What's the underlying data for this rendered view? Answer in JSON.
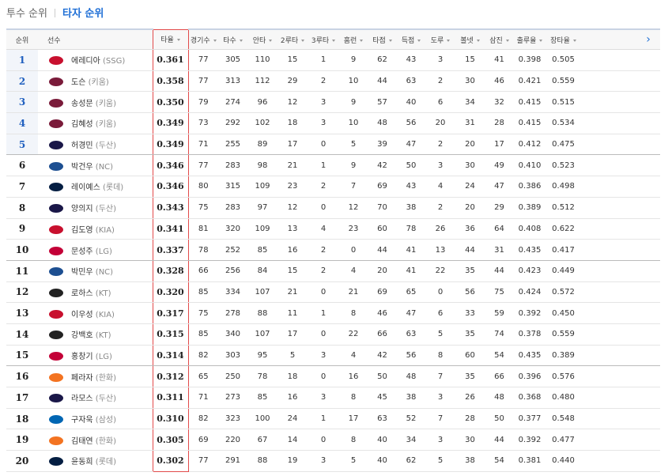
{
  "tabs": [
    "투수 순위",
    "타자 순위"
  ],
  "columns": [
    "순위",
    "선수",
    "타율",
    "경기수",
    "타수",
    "안타",
    "2루타",
    "3루타",
    "홈런",
    "타점",
    "득점",
    "도루",
    "볼넷",
    "삼진",
    "출루율",
    "장타율"
  ],
  "rows": [
    {
      "rank": "1",
      "name": "에레디아",
      "team": "(SSG)",
      "stats": [
        "0.361",
        "77",
        "305",
        "110",
        "15",
        "1",
        "9",
        "62",
        "43",
        "3",
        "15",
        "41",
        "0.398",
        "0.505"
      ]
    },
    {
      "rank": "2",
      "name": "도슨",
      "team": "(키움)",
      "stats": [
        "0.358",
        "77",
        "313",
        "112",
        "29",
        "2",
        "10",
        "44",
        "63",
        "2",
        "30",
        "46",
        "0.421",
        "0.559"
      ]
    },
    {
      "rank": "3",
      "name": "송성문",
      "team": "(키움)",
      "stats": [
        "0.350",
        "79",
        "274",
        "96",
        "12",
        "3",
        "9",
        "57",
        "40",
        "6",
        "34",
        "32",
        "0.415",
        "0.515"
      ]
    },
    {
      "rank": "4",
      "name": "김혜성",
      "team": "(키움)",
      "stats": [
        "0.349",
        "73",
        "292",
        "102",
        "18",
        "3",
        "10",
        "48",
        "56",
        "20",
        "31",
        "28",
        "0.415",
        "0.534"
      ]
    },
    {
      "rank": "5",
      "name": "허경민",
      "team": "(두산)",
      "stats": [
        "0.349",
        "71",
        "255",
        "89",
        "17",
        "0",
        "5",
        "39",
        "47",
        "2",
        "20",
        "17",
        "0.412",
        "0.475"
      ]
    },
    {
      "rank": "6",
      "name": "박건우",
      "team": "(NC)",
      "stats": [
        "0.346",
        "77",
        "283",
        "98",
        "21",
        "1",
        "9",
        "42",
        "50",
        "3",
        "30",
        "49",
        "0.410",
        "0.523"
      ]
    },
    {
      "rank": "7",
      "name": "레이예스",
      "team": "(롯데)",
      "stats": [
        "0.346",
        "80",
        "315",
        "109",
        "23",
        "2",
        "7",
        "69",
        "43",
        "4",
        "24",
        "47",
        "0.386",
        "0.498"
      ]
    },
    {
      "rank": "8",
      "name": "양의지",
      "team": "(두산)",
      "stats": [
        "0.343",
        "75",
        "283",
        "97",
        "12",
        "0",
        "12",
        "70",
        "38",
        "2",
        "20",
        "29",
        "0.389",
        "0.512"
      ]
    },
    {
      "rank": "9",
      "name": "김도영",
      "team": "(KIA)",
      "stats": [
        "0.341",
        "81",
        "320",
        "109",
        "13",
        "4",
        "23",
        "60",
        "78",
        "26",
        "36",
        "64",
        "0.408",
        "0.622"
      ]
    },
    {
      "rank": "10",
      "name": "문성주",
      "team": "(LG)",
      "stats": [
        "0.337",
        "78",
        "252",
        "85",
        "16",
        "2",
        "0",
        "44",
        "41",
        "13",
        "44",
        "31",
        "0.435",
        "0.417"
      ]
    },
    {
      "rank": "11",
      "name": "박민우",
      "team": "(NC)",
      "stats": [
        "0.328",
        "66",
        "256",
        "84",
        "15",
        "2",
        "4",
        "20",
        "41",
        "22",
        "35",
        "44",
        "0.423",
        "0.449"
      ]
    },
    {
      "rank": "12",
      "name": "로하스",
      "team": "(KT)",
      "stats": [
        "0.320",
        "85",
        "334",
        "107",
        "21",
        "0",
        "21",
        "69",
        "65",
        "0",
        "56",
        "75",
        "0.424",
        "0.572"
      ]
    },
    {
      "rank": "13",
      "name": "이우성",
      "team": "(KIA)",
      "stats": [
        "0.317",
        "75",
        "278",
        "88",
        "11",
        "1",
        "8",
        "46",
        "47",
        "6",
        "33",
        "59",
        "0.392",
        "0.450"
      ]
    },
    {
      "rank": "14",
      "name": "강백호",
      "team": "(KT)",
      "stats": [
        "0.315",
        "85",
        "340",
        "107",
        "17",
        "0",
        "22",
        "66",
        "63",
        "5",
        "35",
        "74",
        "0.378",
        "0.559"
      ]
    },
    {
      "rank": "15",
      "name": "홍창기",
      "team": "(LG)",
      "stats": [
        "0.314",
        "82",
        "303",
        "95",
        "5",
        "3",
        "4",
        "42",
        "56",
        "8",
        "60",
        "54",
        "0.435",
        "0.389"
      ]
    },
    {
      "rank": "16",
      "name": "페라자",
      "team": "(한화)",
      "stats": [
        "0.312",
        "65",
        "250",
        "78",
        "18",
        "0",
        "16",
        "50",
        "48",
        "7",
        "35",
        "66",
        "0.396",
        "0.576"
      ]
    },
    {
      "rank": "17",
      "name": "라모스",
      "team": "(두산)",
      "stats": [
        "0.311",
        "71",
        "273",
        "85",
        "16",
        "3",
        "8",
        "45",
        "38",
        "3",
        "26",
        "48",
        "0.368",
        "0.480"
      ]
    },
    {
      "rank": "18",
      "name": "구자욱",
      "team": "(삼성)",
      "stats": [
        "0.310",
        "82",
        "323",
        "100",
        "24",
        "1",
        "17",
        "63",
        "52",
        "7",
        "28",
        "50",
        "0.377",
        "0.548"
      ]
    },
    {
      "rank": "19",
      "name": "김태연",
      "team": "(한화)",
      "stats": [
        "0.305",
        "69",
        "220",
        "67",
        "14",
        "0",
        "8",
        "40",
        "34",
        "3",
        "30",
        "44",
        "0.392",
        "0.477"
      ]
    },
    {
      "rank": "20",
      "name": "윤동희",
      "team": "(롯데)",
      "stats": [
        "0.302",
        "77",
        "291",
        "88",
        "19",
        "3",
        "5",
        "40",
        "62",
        "5",
        "38",
        "54",
        "0.381",
        "0.440"
      ]
    }
  ]
}
